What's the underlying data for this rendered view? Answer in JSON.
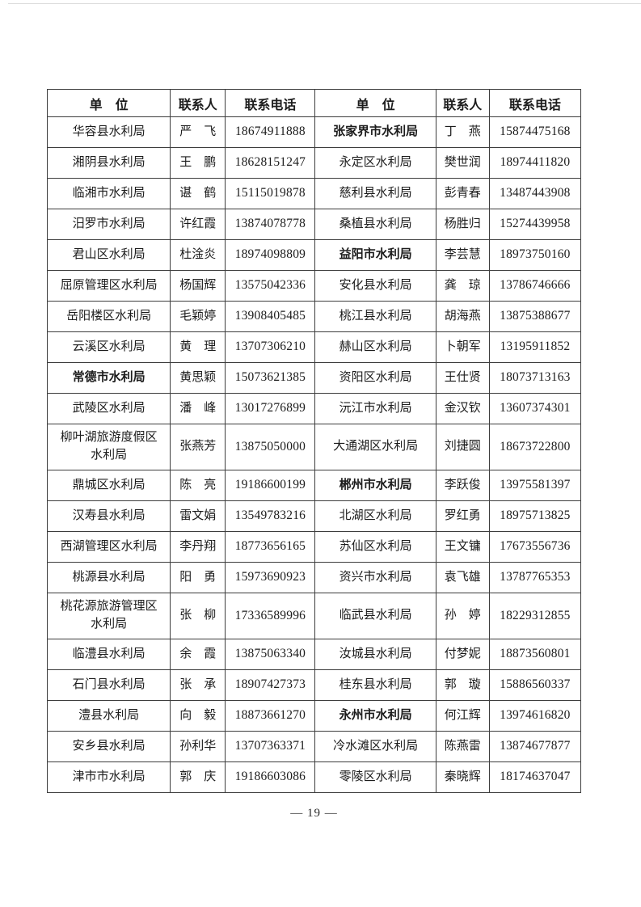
{
  "page": {
    "number_label": "— 19 —"
  },
  "table": {
    "headers": [
      "单　位",
      "联系人",
      "联系电话",
      "单　位",
      "联系人",
      "联系电话"
    ],
    "rows": [
      {
        "cells": [
          "华容县水利局",
          "严　飞",
          "18674911888",
          "张家界市水利局",
          "丁　燕",
          "15874475168"
        ],
        "bold": [
          3
        ]
      },
      {
        "cells": [
          "湘阴县水利局",
          "王　鹏",
          "18628151247",
          "永定区水利局",
          "樊世润",
          "18974411820"
        ]
      },
      {
        "cells": [
          "临湘市水利局",
          "谌　鹤",
          "15115019878",
          "慈利县水利局",
          "彭青春",
          "13487443908"
        ]
      },
      {
        "cells": [
          "汨罗市水利局",
          "许红霞",
          "13874078778",
          "桑植县水利局",
          "杨胜归",
          "15274439958"
        ]
      },
      {
        "cells": [
          "君山区水利局",
          "杜淦炎",
          "18974098809",
          "益阳市水利局",
          "李芸慧",
          "18973750160"
        ],
        "bold": [
          3
        ]
      },
      {
        "cells": [
          "屈原管理区水利局",
          "杨国辉",
          "13575042336",
          "安化县水利局",
          "龚　琼",
          "13786746666"
        ]
      },
      {
        "cells": [
          "岳阳楼区水利局",
          "毛颖婷",
          "13908405485",
          "桃江县水利局",
          "胡海燕",
          "13875388677"
        ]
      },
      {
        "cells": [
          "云溪区水利局",
          "黄　理",
          "13707306210",
          "赫山区水利局",
          "卜朝军",
          "13195911852"
        ]
      },
      {
        "cells": [
          "常德市水利局",
          "黄思颖",
          "15073621385",
          "资阳区水利局",
          "王仕贤",
          "18073713163"
        ],
        "bold": [
          0
        ]
      },
      {
        "cells": [
          "武陵区水利局",
          "潘　峰",
          "13017276899",
          "沅江市水利局",
          "金汉钦",
          "13607374301"
        ]
      },
      {
        "cells": [
          "柳叶湖旅游度假区\n水利局",
          "张燕芳",
          "13875050000",
          "大通湖区水利局",
          "刘捷圆",
          "18673722800"
        ],
        "tall": true
      },
      {
        "cells": [
          "鼎城区水利局",
          "陈　亮",
          "19186600199",
          "郴州市水利局",
          "李跃俊",
          "13975581397"
        ],
        "bold": [
          3
        ]
      },
      {
        "cells": [
          "汉寿县水利局",
          "雷文娟",
          "13549783216",
          "北湖区水利局",
          "罗红勇",
          "18975713825"
        ]
      },
      {
        "cells": [
          "西湖管理区水利局",
          "李丹翔",
          "18773656165",
          "苏仙区水利局",
          "王文镛",
          "17673556736"
        ]
      },
      {
        "cells": [
          "桃源县水利局",
          "阳　勇",
          "15973690923",
          "资兴市水利局",
          "袁飞雄",
          "13787765353"
        ]
      },
      {
        "cells": [
          "桃花源旅游管理区\n水利局",
          "张　柳",
          "17336589996",
          "临武县水利局",
          "孙　婷",
          "18229312855"
        ],
        "tall": true
      },
      {
        "cells": [
          "临澧县水利局",
          "余　霞",
          "13875063340",
          "汝城县水利局",
          "付梦妮",
          "18873560801"
        ]
      },
      {
        "cells": [
          "石门县水利局",
          "张　承",
          "18907427373",
          "桂东县水利局",
          "郭　璇",
          "15886560337"
        ]
      },
      {
        "cells": [
          "澧县水利局",
          "向　毅",
          "18873661270",
          "永州市水利局",
          "何江辉",
          "13974616820"
        ],
        "bold": [
          3
        ]
      },
      {
        "cells": [
          "安乡县水利局",
          "孙利华",
          "13707363371",
          "冷水滩区水利局",
          "陈燕雷",
          "13874677877"
        ]
      },
      {
        "cells": [
          "津市市水利局",
          "郭　庆",
          "19186603086",
          "零陵区水利局",
          "秦晓辉",
          "18174637047"
        ]
      }
    ]
  }
}
